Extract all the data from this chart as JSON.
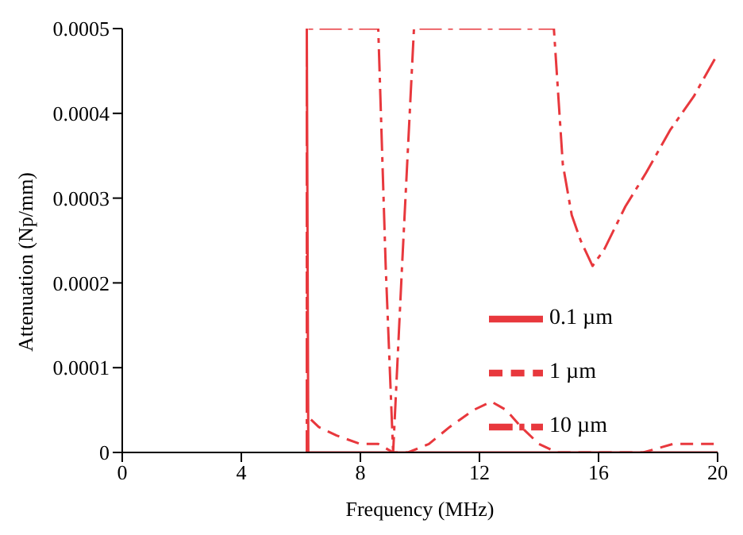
{
  "chart_data": {
    "type": "line",
    "xlabel": "Frequency (MHz)",
    "ylabel": "Attenuation (Np/mm)",
    "xlim": [
      0,
      20
    ],
    "xticks": [
      0,
      4,
      8,
      12,
      16,
      20
    ],
    "ylim": [
      0,
      0.0005
    ],
    "yticks": [
      0,
      0.0001,
      0.0002,
      0.0003,
      0.0004,
      0.0005
    ],
    "legend": "bottom right",
    "marker": "none",
    "series": [
      {
        "name": "0.1 µm",
        "color": "#e8383d",
        "line_style": "solid",
        "x": [
          6.2,
          6.25,
          20
        ],
        "values": [
          0.0005,
          0,
          0
        ]
      },
      {
        "name": "1 µm",
        "color": "#e8383d",
        "line_style": "dashed",
        "x": [
          6.2,
          6.2,
          6.3,
          6.6,
          7.2,
          8.0,
          8.6,
          9.1,
          9.6,
          10.3,
          11.0,
          11.8,
          12.4,
          12.9,
          13.4,
          14.0,
          14.6,
          15.5,
          16.5,
          17.5,
          18.5,
          20
        ],
        "values": [
          0.0005,
          5e-05,
          4e-05,
          3e-05,
          2e-05,
          1e-05,
          1e-05,
          0,
          0,
          1e-05,
          3e-05,
          5e-05,
          6e-05,
          5e-05,
          3e-05,
          1e-05,
          0,
          0,
          0,
          0,
          1e-05,
          1e-05
        ]
      },
      {
        "name": "10 µm",
        "color": "#e8383d",
        "line_style": "dashdot",
        "x": [
          6.2,
          6.2,
          8.6,
          8.85,
          9.1,
          9.4,
          9.8,
          14.5,
          14.8,
          15.1,
          15.4,
          15.8,
          16.2,
          16.9,
          17.6,
          18.4,
          19.2,
          20
        ],
        "values": [
          0,
          0.0005,
          0.0005,
          0.00022,
          0,
          0.00022,
          0.0005,
          0.0005,
          0.00034,
          0.00028,
          0.00025,
          0.00022,
          0.00024,
          0.00029,
          0.00033,
          0.00038,
          0.00042,
          0.00047
        ]
      }
    ]
  }
}
